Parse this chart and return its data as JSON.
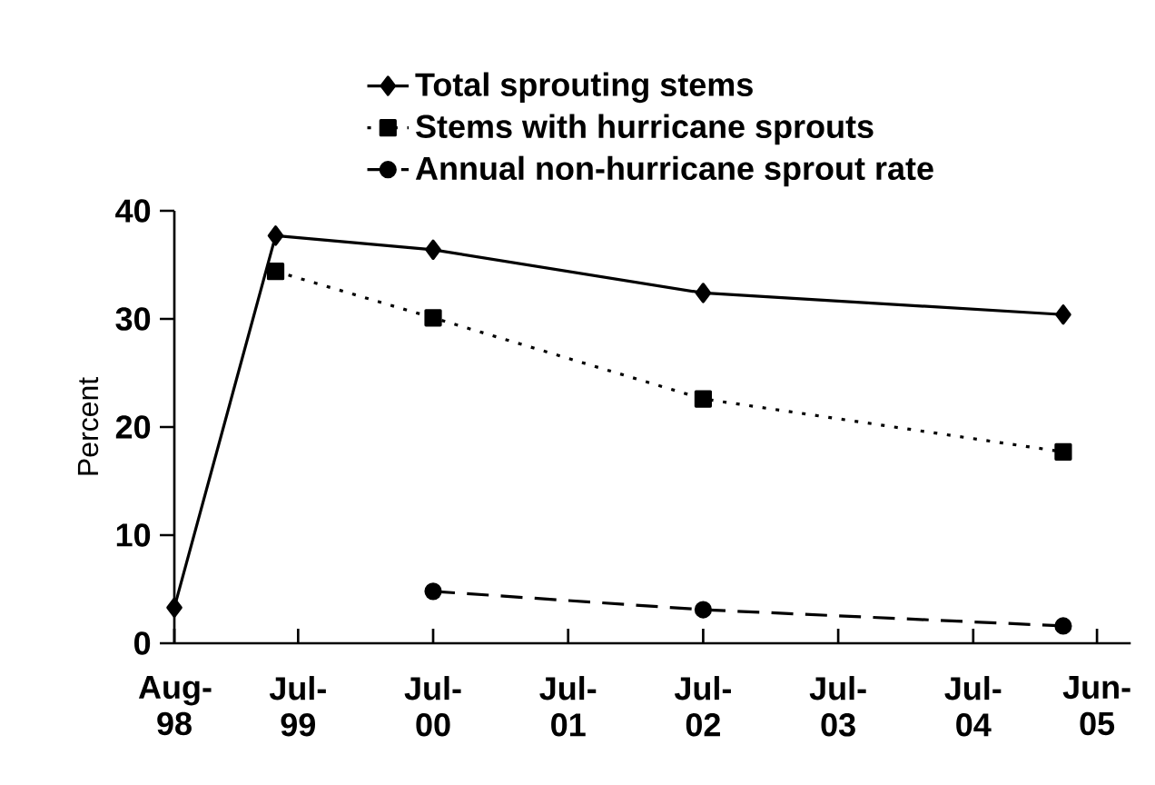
{
  "chart_data": {
    "type": "line",
    "ylabel": "Percent",
    "xlim": [
      "1998-08",
      "2005-09"
    ],
    "ylim": [
      0,
      40
    ],
    "xticks": [
      {
        "value": "1998-08",
        "label": "Aug-98"
      },
      {
        "value": "1999-07",
        "label": "Jul-99"
      },
      {
        "value": "2000-07",
        "label": "Jul-00"
      },
      {
        "value": "2001-07",
        "label": "Jul-01"
      },
      {
        "value": "2002-07",
        "label": "Jul-02"
      },
      {
        "value": "2003-07",
        "label": "Jul-03"
      },
      {
        "value": "2004-07",
        "label": "Jul-04"
      },
      {
        "value": "2005-06",
        "label": "Jun-05"
      }
    ],
    "yticks": [
      0,
      10,
      20,
      30,
      40
    ],
    "legend": "top",
    "series": [
      {
        "name": "Total sprouting stems",
        "color": "#000000",
        "marker": "diamond",
        "line_style": "solid",
        "x": [
          "1998-08",
          "1999-05",
          "2000-07",
          "2002-07",
          "2005-03"
        ],
        "values": [
          3.3,
          37.7,
          36.4,
          32.4,
          30.4
        ]
      },
      {
        "name": "Stems with hurricane sprouts",
        "color": "#000000",
        "marker": "square",
        "line_style": "dotted",
        "x": [
          "1999-05",
          "2000-07",
          "2002-07",
          "2005-03"
        ],
        "values": [
          34.4,
          30.1,
          22.6,
          17.7
        ]
      },
      {
        "name": "Annual non-hurricane sprout rate",
        "color": "#000000",
        "marker": "circle",
        "line_style": "dashed",
        "x": [
          "2000-07",
          "2002-07",
          "2005-03"
        ],
        "values": [
          4.8,
          3.1,
          1.6
        ]
      }
    ]
  }
}
